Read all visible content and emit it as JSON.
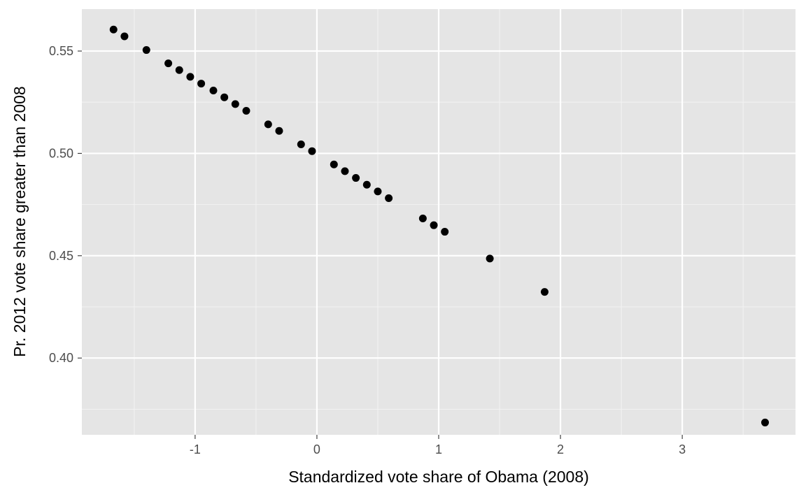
{
  "chart_data": {
    "type": "scatter",
    "xlabel": "Standardized vote share of Obama (2008)",
    "ylabel": "Pr. 2012 vote share greater than 2008",
    "xlim": [
      -1.93,
      3.93
    ],
    "ylim": [
      0.3625,
      0.5705
    ],
    "x_ticks": [
      -1,
      0,
      1,
      2,
      3
    ],
    "x_tick_labels": [
      "-1",
      "0",
      "1",
      "2",
      "3"
    ],
    "y_ticks": [
      0.4,
      0.45,
      0.5,
      0.55
    ],
    "y_tick_labels": [
      "0.40",
      "0.45",
      "0.50",
      "0.55"
    ],
    "grid": true,
    "points_color": "#000000",
    "panel_background": "#e5e5e5",
    "points": [
      {
        "x": -1.67,
        "y": 0.5605
      },
      {
        "x": -1.58,
        "y": 0.5572
      },
      {
        "x": -1.4,
        "y": 0.5505
      },
      {
        "x": -1.22,
        "y": 0.544
      },
      {
        "x": -1.13,
        "y": 0.5407
      },
      {
        "x": -1.04,
        "y": 0.5374
      },
      {
        "x": -0.95,
        "y": 0.5341
      },
      {
        "x": -0.85,
        "y": 0.5307
      },
      {
        "x": -0.76,
        "y": 0.5274
      },
      {
        "x": -0.67,
        "y": 0.5241
      },
      {
        "x": -0.58,
        "y": 0.5208
      },
      {
        "x": -0.4,
        "y": 0.5142
      },
      {
        "x": -0.31,
        "y": 0.511
      },
      {
        "x": -0.13,
        "y": 0.5044
      },
      {
        "x": -0.04,
        "y": 0.5011
      },
      {
        "x": 0.14,
        "y": 0.4946
      },
      {
        "x": 0.23,
        "y": 0.4913
      },
      {
        "x": 0.32,
        "y": 0.488
      },
      {
        "x": 0.41,
        "y": 0.4847
      },
      {
        "x": 0.5,
        "y": 0.4814
      },
      {
        "x": 0.59,
        "y": 0.4781
      },
      {
        "x": 0.87,
        "y": 0.4682
      },
      {
        "x": 0.96,
        "y": 0.4649
      },
      {
        "x": 1.05,
        "y": 0.4617
      },
      {
        "x": 1.42,
        "y": 0.4486
      },
      {
        "x": 1.87,
        "y": 0.4323
      },
      {
        "x": 3.68,
        "y": 0.3685
      }
    ]
  }
}
